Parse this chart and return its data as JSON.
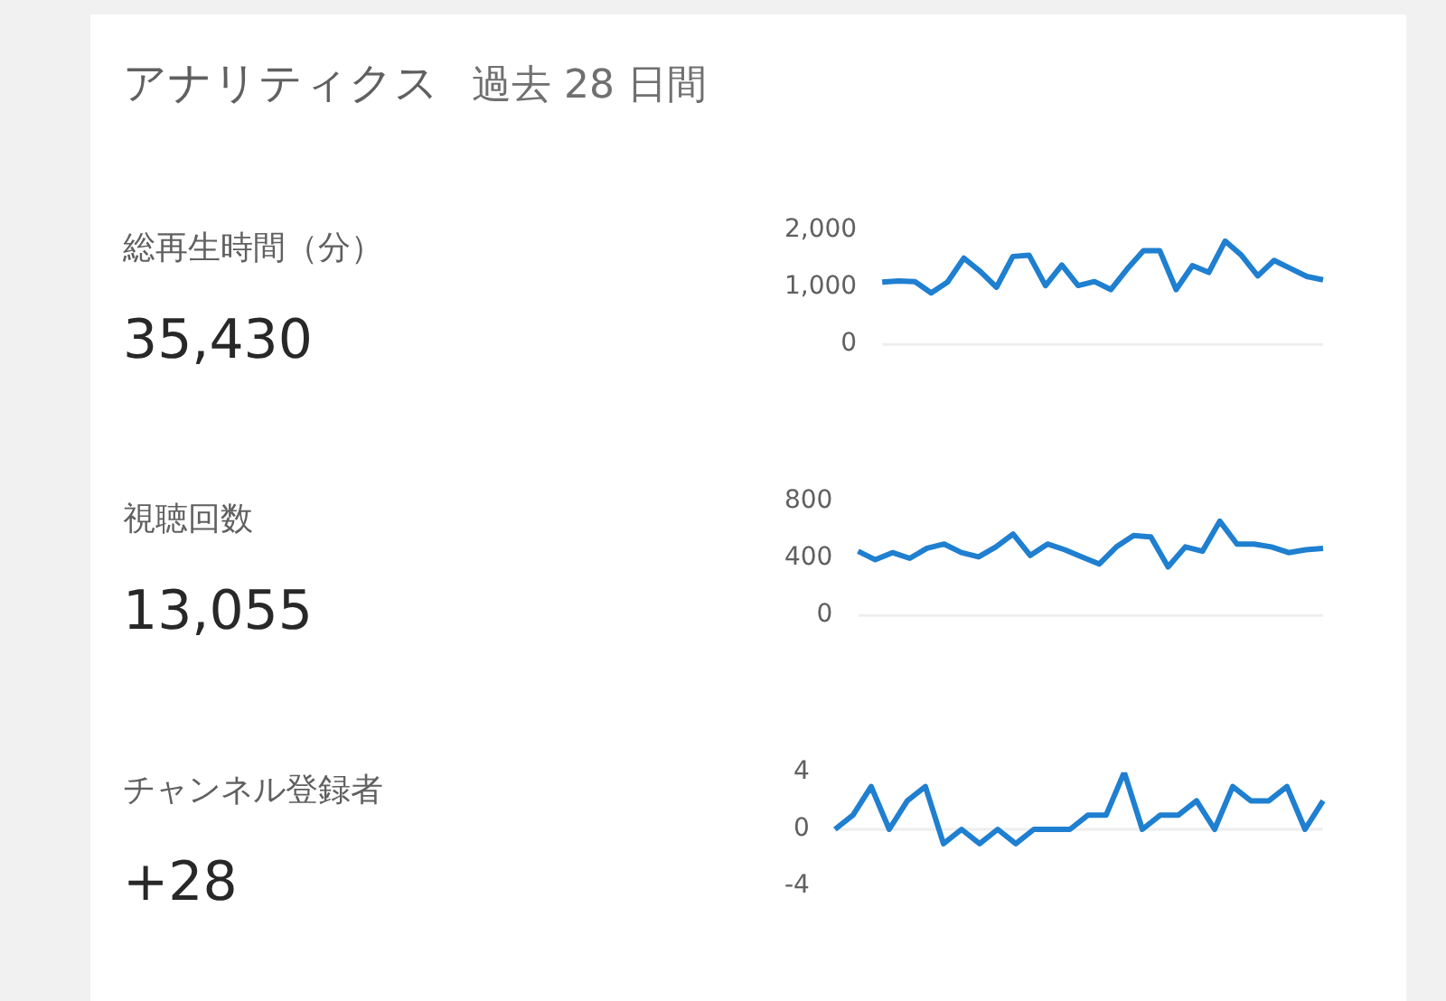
{
  "chart_data": [
    {
      "type": "other",
      "title": "アナリティクス",
      "subtitle": "過去 28 日間"
    },
    {
      "type": "line",
      "annotations": [
        "総再生時間（分）",
        "35,430"
      ],
      "categories": [
        null,
        null,
        null,
        null,
        null,
        null,
        null,
        null,
        null,
        null,
        null,
        null,
        null,
        null,
        null,
        null,
        null,
        null,
        null,
        null,
        null,
        null,
        null,
        null,
        null,
        null,
        null,
        null
      ],
      "color": "#1f7fd0",
      "values": [
        1090,
        1110,
        1100,
        900,
        1090,
        1510,
        1280,
        1000,
        1540,
        1560,
        1030,
        1390,
        1030,
        1100,
        960,
        1320,
        1640,
        1640,
        960,
        1380,
        1260,
        1810,
        1560,
        1200,
        1470,
        1330,
        1190,
        1130
      ],
      "ylim": [
        0,
        2000
      ],
      "yticks": [
        0,
        {
          "value": 1000,
          "label": "1,000"
        },
        {
          "value": 2000,
          "label": "2,000"
        }
      ],
      "tick_labels": "y",
      "ref_lines": [
        {
          "axis": "y",
          "value": 0,
          "color": "#eeeeee"
        }
      ]
    },
    {
      "type": "line",
      "annotations": [
        "視聴回数",
        "13,055"
      ],
      "categories": [
        null,
        null,
        null,
        null,
        null,
        null,
        null,
        null,
        null,
        null,
        null,
        null,
        null,
        null,
        null,
        null,
        null,
        null,
        null,
        null,
        null,
        null,
        null,
        null,
        null,
        null,
        null,
        null
      ],
      "color": "#1f7fd0",
      "values": [
        450,
        390,
        440,
        400,
        470,
        500,
        440,
        410,
        480,
        570,
        420,
        500,
        460,
        410,
        360,
        480,
        560,
        550,
        340,
        480,
        450,
        660,
        500,
        500,
        480,
        440,
        460,
        470
      ],
      "ylim": [
        0,
        800
      ],
      "yticks": [
        0,
        400,
        800
      ],
      "tick_labels": "y",
      "ref_lines": [
        {
          "axis": "y",
          "value": 0,
          "color": "#eeeeee"
        }
      ]
    },
    {
      "type": "line",
      "annotations": [
        "チャンネル登録者",
        "+28"
      ],
      "categories": [
        null,
        null,
        null,
        null,
        null,
        null,
        null,
        null,
        null,
        null,
        null,
        null,
        null,
        null,
        null,
        null,
        null,
        null,
        null,
        null,
        null,
        null,
        null,
        null,
        null,
        null,
        null,
        null
      ],
      "color": "#1f7fd0",
      "values": [
        0,
        1,
        3,
        0,
        2,
        3,
        -1,
        0,
        -1,
        0,
        -1,
        0,
        0,
        0,
        1,
        1,
        4,
        0,
        1,
        1,
        2,
        0,
        3,
        2,
        2,
        3,
        0,
        2
      ],
      "ylim": [
        -4,
        4
      ],
      "yticks": [
        -4,
        0,
        4
      ],
      "tick_labels": "y",
      "ref_lines": [
        {
          "axis": "y",
          "value": 0,
          "color": "#eeeeee"
        }
      ]
    }
  ]
}
